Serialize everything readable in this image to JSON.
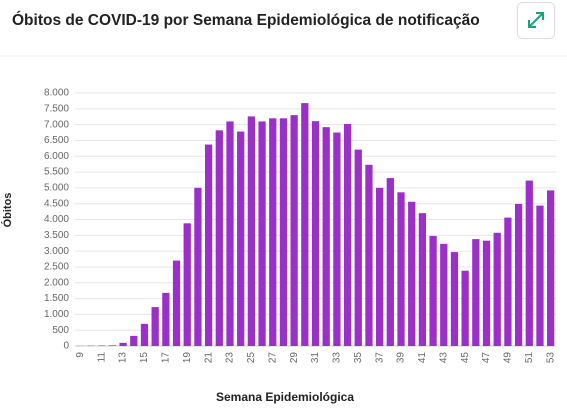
{
  "chart_data": {
    "type": "bar",
    "title": "Óbitos de COVID-19 por Semana Epidemiológica de notificação",
    "x_label": "Semana Epidemiológica",
    "y_label": "Óbitos",
    "categories": [
      "9",
      null,
      "11",
      null,
      "13",
      null,
      "15",
      null,
      "17",
      null,
      "19",
      null,
      "21",
      null,
      "23",
      null,
      "25",
      null,
      "27",
      null,
      "29",
      null,
      "31",
      null,
      "33",
      null,
      "35",
      null,
      "37",
      null,
      "39",
      null,
      "41",
      null,
      "43",
      null,
      "45",
      null,
      "47",
      null,
      "49",
      null,
      "51",
      null,
      "53"
    ],
    "values": [
      5,
      10,
      15,
      20,
      100,
      320,
      700,
      1230,
      1680,
      2700,
      3880,
      5000,
      6370,
      6820,
      7100,
      6780,
      7260,
      7100,
      7200,
      7200,
      7300,
      7680,
      7110,
      6920,
      6750,
      7020,
      6210,
      5730,
      5000,
      5310,
      4860,
      4560,
      4200,
      3480,
      3230,
      2970,
      2380,
      3380,
      3330,
      3580,
      4060,
      4490,
      5230,
      4440,
      4920
    ],
    "color": "#9b30c8",
    "ylim": [
      0,
      8000
    ],
    "yticks": [
      0,
      500,
      {
        "value": 1000,
        "label": "1.000"
      },
      {
        "value": 1500,
        "label": "1.500"
      },
      {
        "value": 2000,
        "label": "2.000"
      },
      {
        "value": 2500,
        "label": "2.500"
      },
      {
        "value": 3000,
        "label": "3.000"
      },
      {
        "value": 3500,
        "label": "3.500"
      },
      {
        "value": 4000,
        "label": "4.000"
      },
      {
        "value": 4500,
        "label": "4.500"
      },
      {
        "value": 5000,
        "label": "5.000"
      },
      {
        "value": 5500,
        "label": "5.500"
      },
      {
        "value": 6000,
        "label": "6.000"
      },
      {
        "value": 6500,
        "label": "6.500"
      },
      {
        "value": 7000,
        "label": "7.000"
      },
      {
        "value": 7500,
        "label": "7.500"
      },
      {
        "value": 8000,
        "label": "8.000"
      }
    ],
    "grid": true
  }
}
